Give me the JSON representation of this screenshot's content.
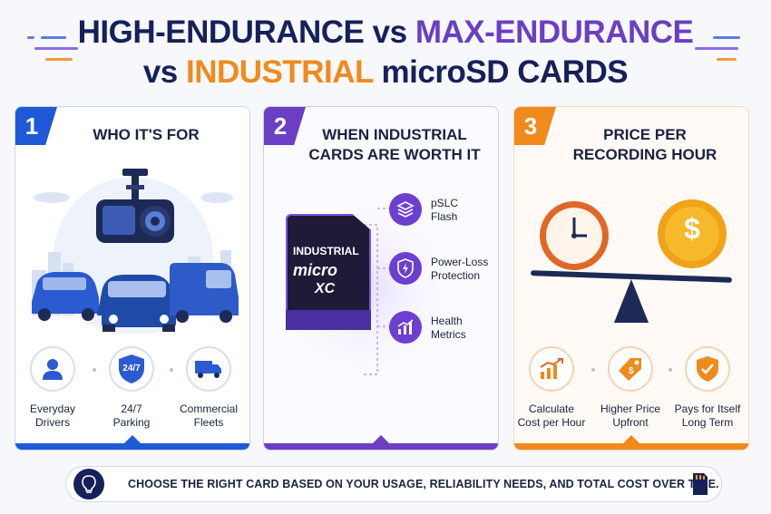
{
  "title": {
    "line1_part1": "HIGH-ENDURANCE",
    "line1_part2": "vs",
    "line1_part3": "MAX-ENDURANCE",
    "line2_part1": "vs",
    "line2_part2": "INDUSTRIAL",
    "line2_part3": "microSD CARDS"
  },
  "colors": {
    "navy": "#16205a",
    "blue": "#1e5ad6",
    "purple": "#6a3fc4",
    "orange": "#f08a1c"
  },
  "panels": [
    {
      "number": "1",
      "title": "WHO IT'S FOR",
      "items": [
        {
          "icon": "person-icon",
          "label_line1": "Everyday",
          "label_line2": "Drivers"
        },
        {
          "icon": "shield-24-7-icon",
          "icon_text": "24/7",
          "label_line1": "24/7",
          "label_line2": "Parking"
        },
        {
          "icon": "truck-icon",
          "label_line1": "Commercial",
          "label_line2": "Fleets"
        }
      ]
    },
    {
      "number": "2",
      "title_line1": "WHEN INDUSTRIAL",
      "title_line2": "CARDS ARE WORTH IT",
      "card": {
        "line1": "INDUSTRIAL",
        "line2": "micro",
        "line3": "XC"
      },
      "features": [
        {
          "icon": "layers-icon",
          "label_line1": "pSLC",
          "label_line2": "Flash"
        },
        {
          "icon": "power-shield-icon",
          "label_line1": "Power-Loss",
          "label_line2": "Protection"
        },
        {
          "icon": "bar-chart-icon",
          "label_line1": "Health",
          "label_line2": "Metrics"
        }
      ]
    },
    {
      "number": "3",
      "title_line1": "PRICE PER",
      "title_line2": "RECORDING HOUR",
      "coin_symbol": "$",
      "items": [
        {
          "icon": "growth-chart-icon",
          "label_line1": "Calculate",
          "label_line2": "Cost per Hour"
        },
        {
          "icon": "price-tag-icon",
          "label_line1": "Higher Price",
          "label_line2": "Upfront"
        },
        {
          "icon": "check-shield-icon",
          "label_line1": "Pays for Itself",
          "label_line2": "Long Term"
        }
      ]
    }
  ],
  "footer": {
    "text": "CHOOSE THE RIGHT CARD BASED ON YOUR USAGE, RELIABILITY NEEDS, AND TOTAL COST OVER TIME.",
    "left_icon": "lightbulb-icon",
    "right_icon": "sd-card-icon"
  }
}
